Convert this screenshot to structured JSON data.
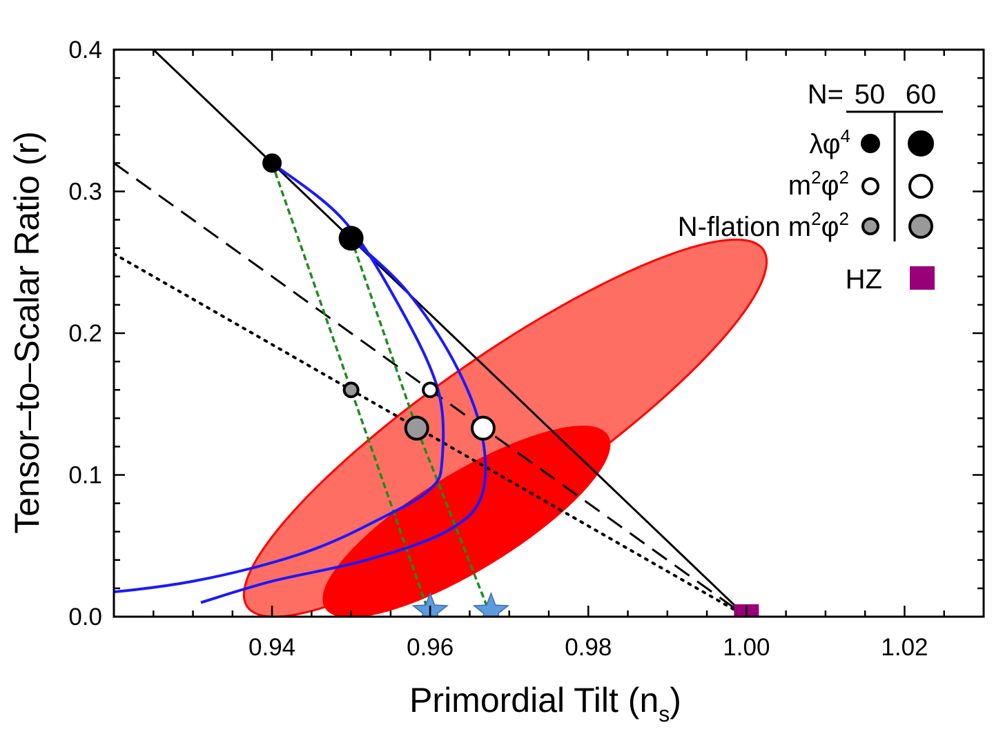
{
  "chart_data": {
    "type": "scatter",
    "xlabel_main": "Primordial Tilt (n",
    "xlabel_sub": "s",
    "xlabel_end": ")",
    "ylabel": "Tensor–to–Scalar Ratio (r)",
    "xlim": [
      0.92,
      1.03
    ],
    "ylim": [
      0.0,
      0.4
    ],
    "x_ticks": [
      0.94,
      0.96,
      0.98,
      1.0,
      1.02
    ],
    "x_tick_labels": [
      "0.94",
      "0.96",
      "0.98",
      "1.00",
      "1.02"
    ],
    "y_ticks": [
      0.0,
      0.1,
      0.2,
      0.3,
      0.4
    ],
    "y_tick_labels": [
      "0.0",
      "0.1",
      "0.2",
      "0.3",
      "0.4"
    ],
    "contours": [
      {
        "level": "outer",
        "color": "#ff6e62",
        "edge": "#ff0000",
        "center": [
          0.9695,
          0.133
        ],
        "semi_axis_a": 0.0367,
        "semi_axis_b": 0.0155,
        "ns_per_r": 0.2195
      },
      {
        "level": "inner",
        "color": "#ff0000",
        "edge": "#ff0000",
        "center": [
          0.9646,
          0.067
        ],
        "semi_axis_a": 0.0225,
        "semi_axis_b": 0.0105,
        "ns_per_r": 0.2195
      }
    ],
    "lines": [
      {
        "style": "solid",
        "color": "#000000",
        "points": [
          [
            0.925,
            0.4
          ],
          [
            1.0,
            0.0
          ]
        ]
      },
      {
        "style": "dashed",
        "color": "#000000",
        "points": [
          [
            0.92,
            0.32
          ],
          [
            1.0,
            0.0
          ]
        ]
      },
      {
        "style": "dotted",
        "color": "#000000",
        "points": [
          [
            0.92,
            0.256
          ],
          [
            1.0,
            0.0
          ]
        ]
      },
      {
        "style": "green-dashed",
        "color": "#1e8c1e",
        "points": [
          [
            0.94,
            0.32
          ],
          [
            0.95,
            0.16
          ],
          [
            0.96,
            0.0
          ]
        ]
      },
      {
        "style": "green-dashed",
        "color": "#1e8c1e",
        "points": [
          [
            0.95,
            0.267
          ],
          [
            0.9583,
            0.133
          ],
          [
            0.9677,
            0.0
          ]
        ]
      }
    ],
    "blue_curves": [
      {
        "color": "#1a1aff",
        "points": [
          [
            0.94,
            0.32
          ],
          [
            0.949,
            0.28
          ],
          [
            0.956,
            0.22
          ],
          [
            0.961,
            0.16
          ],
          [
            0.9615,
            0.11
          ],
          [
            0.96,
            0.09
          ],
          [
            0.954,
            0.07
          ],
          [
            0.944,
            0.045
          ],
          [
            0.93,
            0.025
          ],
          [
            0.915,
            0.015
          ],
          [
            0.9,
            0.011
          ]
        ]
      },
      {
        "color": "#1a1aff",
        "points": [
          [
            0.95,
            0.267
          ],
          [
            0.957,
            0.23
          ],
          [
            0.963,
            0.18
          ],
          [
            0.9665,
            0.13
          ],
          [
            0.9665,
            0.085
          ],
          [
            0.962,
            0.06
          ],
          [
            0.952,
            0.04
          ],
          [
            0.94,
            0.025
          ],
          [
            0.931,
            0.01
          ]
        ]
      }
    ],
    "points": [
      {
        "model": "λφ4",
        "N": 50,
        "x": 0.94,
        "y": 0.32,
        "fill": "#000000"
      },
      {
        "model": "λφ4",
        "N": 60,
        "x": 0.95,
        "y": 0.267,
        "fill": "#000000"
      },
      {
        "model": "m²φ²",
        "N": 50,
        "x": 0.96,
        "y": 0.16,
        "fill": "#ffffff"
      },
      {
        "model": "m²φ²",
        "N": 60,
        "x": 0.9667,
        "y": 0.133,
        "fill": "#ffffff"
      },
      {
        "model": "N-flation m²φ²",
        "N": 50,
        "x": 0.95,
        "y": 0.16,
        "fill": "#999999"
      },
      {
        "model": "N-flation m²φ²",
        "N": 60,
        "x": 0.9583,
        "y": 0.133,
        "fill": "#999999"
      },
      {
        "model": "HZ",
        "x": 1.0,
        "y": 0.0,
        "fill": "#990077"
      }
    ],
    "stars": [
      {
        "x": 0.96,
        "y": 0.0,
        "color": "#5b9bde"
      },
      {
        "x": 0.9677,
        "y": 0.0,
        "color": "#5b9bde"
      }
    ],
    "legend": {
      "placement": "top-right",
      "header": "N=",
      "n_values": [
        "50",
        "60"
      ],
      "entries": [
        {
          "label": "λφ",
          "sup": "4",
          "fill": "#000000"
        },
        {
          "label": "m",
          "sup": "2",
          "label2": "φ",
          "sup2": "2",
          "fill": "#ffffff"
        },
        {
          "label": "N-flation m",
          "sup": "2",
          "label2": "φ",
          "sup2": "2",
          "fill": "#999999"
        },
        {
          "label": "HZ",
          "fill": "#990077",
          "marker": "square"
        }
      ]
    }
  }
}
